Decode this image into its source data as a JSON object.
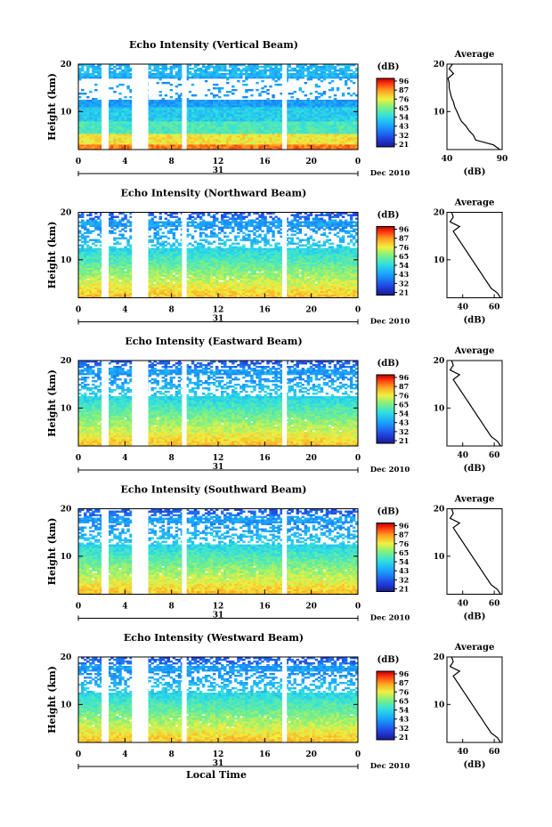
{
  "chart_data": [
    {
      "type": "heatmap",
      "title": "Echo Intensity (Vertical Beam)",
      "ylabel": "Height (km)",
      "yticks": [
        "20",
        "10"
      ],
      "ylim": [
        2,
        20
      ],
      "xticks": [
        "0",
        "4",
        "8",
        "12",
        "16",
        "20",
        "0"
      ],
      "xlim": [
        0,
        24
      ],
      "date_day": "31",
      "date_label": "Dec 2010",
      "colorbar": {
        "unit": "(dB)",
        "ticks": [
          "96",
          "87",
          "76",
          "65",
          "54",
          "43",
          "32",
          "21"
        ],
        "range": [
          21,
          96
        ]
      },
      "data_gaps_hours": [
        [
          2.0,
          2.6
        ],
        [
          4.6,
          6.0
        ],
        [
          8.9,
          9.3
        ],
        [
          17.5,
          17.9
        ]
      ],
      "profile": {
        "title": "Average",
        "xlabel": "(dB)",
        "xticks": [
          "40",
          "90"
        ],
        "xlim": [
          40,
          90
        ],
        "yticks": [
          "20",
          "10"
        ],
        "height_km": [
          2,
          3,
          4,
          5,
          6,
          7,
          8,
          9,
          10,
          11,
          12,
          13,
          14,
          15,
          16,
          17,
          18,
          19,
          20
        ],
        "db": [
          88,
          82,
          66,
          64,
          60,
          57,
          53,
          51,
          49,
          47,
          46,
          44,
          43,
          42,
          42,
          41,
          46,
          42,
          45
        ]
      }
    },
    {
      "type": "heatmap",
      "title": "Echo Intensity (Northward Beam)",
      "ylabel": "Height (km)",
      "yticks": [
        "20",
        "10"
      ],
      "ylim": [
        2,
        20
      ],
      "xticks": [
        "0",
        "4",
        "8",
        "12",
        "16",
        "20",
        "0"
      ],
      "xlim": [
        0,
        24
      ],
      "date_day": "31",
      "date_label": "Dec 2010",
      "colorbar": {
        "unit": "(dB)",
        "ticks": [
          "96",
          "87",
          "76",
          "65",
          "54",
          "43",
          "32",
          "21"
        ],
        "range": [
          21,
          96
        ]
      },
      "data_gaps_hours": [
        [
          2.0,
          2.6
        ],
        [
          4.6,
          6.0
        ],
        [
          8.9,
          9.3
        ],
        [
          17.5,
          17.9
        ]
      ],
      "profile": {
        "title": "Average",
        "xlabel": "(dB)",
        "xticks": [
          "40",
          "60"
        ],
        "xlim": [
          30,
          65
        ],
        "yticks": [
          "20",
          "10"
        ],
        "height_km": [
          2,
          3,
          4,
          5,
          6,
          7,
          8,
          9,
          10,
          11,
          12,
          13,
          14,
          15,
          16,
          17,
          18,
          19,
          20
        ],
        "db": [
          64,
          62,
          58,
          56,
          54,
          52,
          50,
          48,
          46,
          44,
          42,
          40,
          38,
          36,
          34,
          38,
          32,
          34,
          33
        ]
      }
    },
    {
      "type": "heatmap",
      "title": "Echo Intensity (Eastward Beam)",
      "ylabel": "Height (km)",
      "yticks": [
        "20",
        "10"
      ],
      "ylim": [
        2,
        20
      ],
      "xticks": [
        "0",
        "4",
        "8",
        "12",
        "16",
        "20",
        "0"
      ],
      "xlim": [
        0,
        24
      ],
      "date_day": "31",
      "date_label": "Dec 2010",
      "colorbar": {
        "unit": "(dB)",
        "ticks": [
          "96",
          "87",
          "76",
          "65",
          "54",
          "43",
          "32",
          "21"
        ],
        "range": [
          21,
          96
        ]
      },
      "data_gaps_hours": [
        [
          2.0,
          2.6
        ],
        [
          4.6,
          6.0
        ],
        [
          8.9,
          9.3
        ],
        [
          17.5,
          17.9
        ]
      ],
      "profile": {
        "title": "Average",
        "xlabel": "(dB)",
        "xticks": [
          "40",
          "60"
        ],
        "xlim": [
          30,
          65
        ],
        "yticks": [
          "20",
          "10"
        ],
        "height_km": [
          2,
          3,
          4,
          5,
          6,
          7,
          8,
          9,
          10,
          11,
          12,
          13,
          14,
          15,
          16,
          17,
          18,
          19,
          20
        ],
        "db": [
          64,
          62,
          58,
          56,
          54,
          52,
          50,
          48,
          46,
          44,
          42,
          40,
          38,
          36,
          34,
          38,
          32,
          34,
          33
        ]
      }
    },
    {
      "type": "heatmap",
      "title": "Echo Intensity (Southward Beam)",
      "ylabel": "Height (km)",
      "yticks": [
        "20",
        "10"
      ],
      "ylim": [
        2,
        20
      ],
      "xticks": [
        "0",
        "4",
        "8",
        "12",
        "16",
        "20",
        "0"
      ],
      "xlim": [
        0,
        24
      ],
      "date_day": "31",
      "date_label": "Dec 2010",
      "colorbar": {
        "unit": "(dB)",
        "ticks": [
          "96",
          "87",
          "76",
          "65",
          "54",
          "43",
          "32",
          "21"
        ],
        "range": [
          21,
          96
        ]
      },
      "data_gaps_hours": [
        [
          2.0,
          2.6
        ],
        [
          4.6,
          6.0
        ],
        [
          8.9,
          9.3
        ],
        [
          17.5,
          17.9
        ]
      ],
      "profile": {
        "title": "Average",
        "xlabel": "(dB)",
        "xticks": [
          "40",
          "60"
        ],
        "xlim": [
          30,
          65
        ],
        "yticks": [
          "20",
          "10"
        ],
        "height_km": [
          2,
          3,
          4,
          5,
          6,
          7,
          8,
          9,
          10,
          11,
          12,
          13,
          14,
          15,
          16,
          17,
          18,
          19,
          20
        ],
        "db": [
          64,
          62,
          58,
          56,
          54,
          52,
          50,
          48,
          46,
          44,
          42,
          40,
          38,
          36,
          34,
          38,
          32,
          34,
          33
        ]
      }
    },
    {
      "type": "heatmap",
      "title": "Echo Intensity (Westward Beam)",
      "ylabel": "Height (km)",
      "yticks": [
        "20",
        "10"
      ],
      "ylim": [
        2,
        20
      ],
      "xticks": [
        "0",
        "4",
        "8",
        "12",
        "16",
        "20",
        "0"
      ],
      "xlim": [
        0,
        24
      ],
      "date_day": "31",
      "date_label": "Dec 2010",
      "xlabel": "Local Time",
      "colorbar": {
        "unit": "(dB)",
        "ticks": [
          "96",
          "87",
          "76",
          "65",
          "54",
          "43",
          "32",
          "21"
        ],
        "range": [
          21,
          96
        ]
      },
      "data_gaps_hours": [
        [
          2.0,
          2.6
        ],
        [
          4.6,
          6.0
        ],
        [
          8.9,
          9.3
        ],
        [
          17.5,
          17.9
        ]
      ],
      "profile": {
        "title": "Average",
        "xlabel": "(dB)",
        "xticks": [
          "40",
          "60"
        ],
        "xlim": [
          30,
          65
        ],
        "yticks": [
          "20",
          "10"
        ],
        "height_km": [
          2,
          3,
          4,
          5,
          6,
          7,
          8,
          9,
          10,
          11,
          12,
          13,
          14,
          15,
          16,
          17,
          18,
          19,
          20
        ],
        "db": [
          64,
          62,
          58,
          56,
          54,
          52,
          50,
          48,
          46,
          44,
          42,
          40,
          38,
          36,
          34,
          38,
          32,
          34,
          33
        ]
      }
    }
  ]
}
